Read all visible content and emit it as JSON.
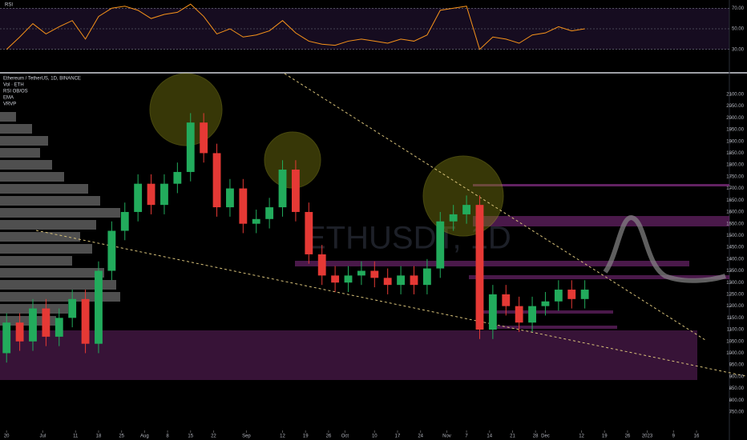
{
  "chart_data": [
    {
      "type": "line",
      "title": "RSI",
      "series": [
        {
          "color": "#f7931a",
          "values": [
            30,
            42,
            55,
            45,
            52,
            58,
            40,
            62,
            70,
            72,
            68,
            60,
            64,
            66,
            74,
            62,
            45,
            50,
            42,
            44,
            48,
            58,
            46,
            38,
            35,
            34,
            38,
            40,
            38,
            36,
            40,
            38,
            44,
            68,
            70,
            72,
            30,
            42,
            40,
            36,
            44,
            46,
            52,
            48,
            50
          ]
        }
      ],
      "ylim": [
        8,
        78
      ],
      "yticks": [
        {
          "value": 30,
          "label": "30.00"
        },
        {
          "value": 50,
          "label": "50.00"
        },
        {
          "value": 70,
          "label": "70.00"
        }
      ]
    },
    {
      "type": "candlestick",
      "title": "Ethereum / TetherUS, 1D, BINANCE",
      "indicators": [
        "Vol · ETH",
        "RSI OB/OS",
        "EMA",
        "VRVP"
      ],
      "watermark": "ETHUSDT, 1D",
      "up_color": "#22ab5c",
      "down_color": "#e53935",
      "open": [
        1000,
        1130,
        1050,
        1190,
        1070,
        1150,
        1230,
        1040,
        1350,
        1520,
        1600,
        1720,
        1630,
        1720,
        1770,
        1980,
        1850,
        1620,
        1700,
        1550,
        1570,
        1620,
        1780,
        1600,
        1420,
        1330,
        1300,
        1330,
        1350,
        1320,
        1290,
        1330,
        1290,
        1360,
        1560,
        1590,
        1630,
        1100,
        1250,
        1200,
        1130,
        1200,
        1220,
        1270,
        1230
      ],
      "high": [
        1170,
        1170,
        1230,
        1230,
        1190,
        1270,
        1270,
        1390,
        1560,
        1640,
        1760,
        1760,
        1760,
        1810,
        2020,
        2020,
        1890,
        1740,
        1740,
        1610,
        1660,
        1820,
        1820,
        1640,
        1460,
        1370,
        1370,
        1390,
        1390,
        1360,
        1370,
        1370,
        1400,
        1600,
        1630,
        1670,
        1670,
        1290,
        1290,
        1240,
        1240,
        1260,
        1310,
        1310,
        1310
      ],
      "low": [
        960,
        1010,
        1010,
        1030,
        1030,
        1110,
        1000,
        1000,
        1310,
        1480,
        1560,
        1590,
        1590,
        1680,
        1730,
        1810,
        1580,
        1580,
        1510,
        1510,
        1530,
        1580,
        1560,
        1380,
        1290,
        1260,
        1260,
        1290,
        1280,
        1250,
        1250,
        1250,
        1250,
        1320,
        1520,
        1550,
        1060,
        1060,
        1160,
        1090,
        1090,
        1160,
        1180,
        1190,
        1190
      ],
      "close": [
        1130,
        1050,
        1190,
        1070,
        1150,
        1230,
        1040,
        1350,
        1520,
        1600,
        1720,
        1630,
        1720,
        1770,
        1980,
        1850,
        1620,
        1700,
        1550,
        1570,
        1620,
        1780,
        1600,
        1420,
        1330,
        1300,
        1330,
        1350,
        1320,
        1290,
        1330,
        1290,
        1360,
        1560,
        1590,
        1630,
        1100,
        1250,
        1200,
        1130,
        1200,
        1220,
        1270,
        1230,
        1270
      ],
      "ylim": [
        682,
        2188
      ],
      "yticks": [
        {
          "value": 750,
          "label": "750.00"
        },
        {
          "value": 800,
          "label": "800.00"
        },
        {
          "value": 850,
          "label": "850.00"
        },
        {
          "value": 900,
          "label": "900.00"
        },
        {
          "value": 950,
          "label": "950.00"
        },
        {
          "value": 1000,
          "label": "1000.00"
        },
        {
          "value": 1050,
          "label": "1050.00"
        },
        {
          "value": 1100,
          "label": "1100.00"
        },
        {
          "value": 1150,
          "label": "1150.00"
        },
        {
          "value": 1200,
          "label": "1200.00"
        },
        {
          "value": 1250,
          "label": "1250.00"
        },
        {
          "value": 1300,
          "label": "1300.00"
        },
        {
          "value": 1350,
          "label": "1350.00"
        },
        {
          "value": 1400,
          "label": "1400.00"
        },
        {
          "value": 1450,
          "label": "1450.00"
        },
        {
          "value": 1500,
          "label": "1500.00"
        },
        {
          "value": 1550,
          "label": "1550.00"
        },
        {
          "value": 1600,
          "label": "1600.00"
        },
        {
          "value": 1650,
          "label": "1650.00"
        },
        {
          "value": 1700,
          "label": "1700.00"
        },
        {
          "value": 1750,
          "label": "1750.00"
        },
        {
          "value": 1800,
          "label": "1800.00"
        },
        {
          "value": 1850,
          "label": "1850.00"
        },
        {
          "value": 1900,
          "label": "1900.00"
        },
        {
          "value": 1950,
          "label": "1950.00"
        },
        {
          "value": 2000,
          "label": "2000.00"
        },
        {
          "value": 2050,
          "label": "2050.00"
        },
        {
          "value": 2100,
          "label": "2100.00"
        }
      ],
      "xlim": [
        -0.5,
        55
      ],
      "xticks": [
        {
          "value": 0,
          "label": "20"
        },
        {
          "value": 2.75,
          "label": "Jul"
        },
        {
          "value": 5.25,
          "label": "11"
        },
        {
          "value": 7,
          "label": "18"
        },
        {
          "value": 8.75,
          "label": "25"
        },
        {
          "value": 10.5,
          "label": "Aug"
        },
        {
          "value": 12.25,
          "label": "8"
        },
        {
          "value": 14,
          "label": "15"
        },
        {
          "value": 15.75,
          "label": "22"
        },
        {
          "value": 18.25,
          "label": "Sep"
        },
        {
          "value": 21,
          "label": "12"
        },
        {
          "value": 22.75,
          "label": "19"
        },
        {
          "value": 24.5,
          "label": "26"
        },
        {
          "value": 25.75,
          "label": "Oct"
        },
        {
          "value": 28,
          "label": "10"
        },
        {
          "value": 29.75,
          "label": "17"
        },
        {
          "value": 31.5,
          "label": "24"
        },
        {
          "value": 33.5,
          "label": "Nov"
        },
        {
          "value": 35,
          "label": "7"
        },
        {
          "value": 36.75,
          "label": "14"
        },
        {
          "value": 38.5,
          "label": "21"
        },
        {
          "value": 40.25,
          "label": "28"
        },
        {
          "value": 41,
          "label": "Dec"
        },
        {
          "value": 43.75,
          "label": "12"
        },
        {
          "value": 45.5,
          "label": "19"
        },
        {
          "value": 47.25,
          "label": "26"
        },
        {
          "value": 48.75,
          "label": "2023"
        },
        {
          "value": 50.75,
          "label": "9"
        },
        {
          "value": 52.5,
          "label": "16"
        }
      ]
    }
  ]
}
